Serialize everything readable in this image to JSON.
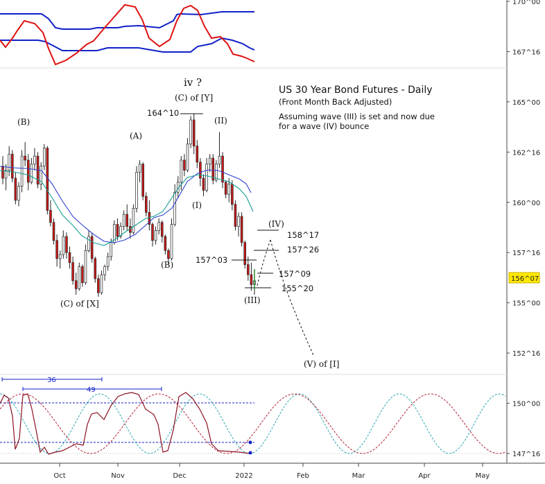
{
  "chart_data": {
    "type": "candlestick",
    "title": "US 30 Year Bond Futures - Daily",
    "subtitle": "(Front Month Back Adjusted)",
    "note_line1": "Assuming wave (III) is set and now due",
    "note_line2": "for a wave (IV) bounce",
    "y_ticks": [
      "170^00",
      "167^16",
      "165^00",
      "162^16",
      "160^00",
      "157^16",
      "155^00",
      "152^16",
      "150^00",
      "147^16"
    ],
    "x_ticks": [
      "Oct",
      "Nov",
      "Dec",
      "2022",
      "Feb",
      "Mar",
      "Apr",
      "May"
    ],
    "last_price": "156^07",
    "wave_labels": {
      "B_left": "(B)",
      "C_of_X": "(C) of [X]",
      "A": "(A)",
      "B": "(B)",
      "iv": "iv ?",
      "C_of_Y": "(C) of [Y]",
      "I": "(I)",
      "II": "(II)",
      "III": "(III)",
      "IV": "(IV)",
      "V_of_I": "(V) of [I]"
    },
    "price_levels": {
      "p164": "164^10",
      "p157_03": "157^03",
      "p158_17": "158^17",
      "p157_26": "157^26",
      "p157_09": "157^09",
      "p155_20": "155^20"
    },
    "cycle_labels": {
      "c36": "36",
      "c49": "49"
    },
    "candles": [
      [
        161.8,
        162.3,
        160.9,
        161.2
      ],
      [
        161.2,
        161.9,
        160.6,
        161.6
      ],
      [
        161.6,
        162.8,
        161.3,
        162.4
      ],
      [
        162.4,
        162.6,
        161.0,
        161.2
      ],
      [
        161.2,
        161.5,
        159.9,
        160.1
      ],
      [
        160.1,
        161.0,
        159.8,
        160.8
      ],
      [
        160.8,
        162.6,
        160.5,
        162.3
      ],
      [
        162.3,
        163.0,
        161.8,
        162.1
      ],
      [
        162.1,
        162.4,
        160.6,
        161.0
      ],
      [
        161.0,
        162.2,
        160.9,
        161.9
      ],
      [
        161.9,
        162.7,
        161.6,
        162.3
      ],
      [
        162.3,
        162.5,
        160.7,
        160.9
      ],
      [
        160.9,
        162.0,
        160.6,
        161.8
      ],
      [
        161.8,
        162.9,
        161.6,
        162.7
      ],
      [
        162.7,
        162.8,
        159.4,
        159.6
      ],
      [
        159.6,
        160.1,
        158.8,
        159.0
      ],
      [
        159.0,
        159.2,
        157.9,
        158.1
      ],
      [
        158.1,
        158.4,
        156.8,
        157.2
      ],
      [
        157.2,
        157.6,
        156.7,
        157.4
      ],
      [
        157.4,
        158.6,
        157.2,
        158.3
      ],
      [
        158.3,
        158.5,
        157.2,
        157.5
      ],
      [
        157.5,
        157.8,
        156.7,
        157.0
      ],
      [
        157.0,
        157.3,
        155.9,
        156.1
      ],
      [
        156.1,
        156.5,
        155.4,
        155.7
      ],
      [
        155.7,
        157.0,
        155.6,
        156.8
      ],
      [
        156.8,
        156.9,
        155.8,
        156.0
      ],
      [
        156.0,
        157.9,
        155.9,
        157.6
      ],
      [
        157.6,
        158.6,
        157.5,
        158.3
      ],
      [
        158.3,
        158.5,
        157.0,
        157.2
      ],
      [
        157.2,
        157.3,
        156.0,
        156.2
      ],
      [
        156.2,
        156.4,
        155.3,
        155.5
      ],
      [
        155.5,
        156.6,
        155.4,
        156.4
      ],
      [
        156.4,
        156.9,
        156.1,
        156.8
      ],
      [
        156.8,
        157.5,
        156.6,
        157.3
      ],
      [
        157.3,
        158.2,
        157.1,
        158.0
      ],
      [
        158.0,
        159.1,
        157.9,
        158.9
      ],
      [
        158.9,
        159.2,
        158.1,
        158.3
      ],
      [
        158.3,
        159.0,
        158.2,
        158.8
      ],
      [
        158.8,
        159.6,
        158.6,
        159.4
      ],
      [
        159.4,
        159.9,
        158.6,
        158.8
      ],
      [
        158.8,
        159.2,
        158.2,
        158.5
      ],
      [
        158.5,
        159.9,
        158.4,
        159.7
      ],
      [
        159.7,
        161.8,
        159.5,
        161.5
      ],
      [
        161.5,
        162.1,
        161.0,
        161.9
      ],
      [
        161.9,
        162.0,
        160.1,
        160.3
      ],
      [
        160.3,
        160.5,
        159.3,
        159.5
      ],
      [
        159.5,
        160.1,
        158.6,
        158.9
      ],
      [
        158.9,
        159.0,
        157.8,
        158.1
      ],
      [
        158.1,
        158.8,
        157.9,
        158.6
      ],
      [
        158.6,
        159.2,
        158.4,
        159.0
      ],
      [
        159.0,
        159.1,
        158.0,
        158.3
      ],
      [
        158.3,
        158.4,
        157.4,
        157.6
      ],
      [
        157.6,
        157.7,
        156.9,
        157.2
      ],
      [
        157.2,
        159.2,
        157.1,
        158.9
      ],
      [
        158.9,
        160.9,
        158.8,
        160.5
      ],
      [
        160.5,
        161.3,
        160.2,
        161.0
      ],
      [
        161.0,
        162.3,
        160.6,
        162.1
      ],
      [
        162.1,
        162.4,
        161.3,
        161.6
      ],
      [
        161.6,
        163.2,
        161.5,
        162.9
      ],
      [
        162.9,
        164.3,
        162.7,
        164.1
      ],
      [
        164.1,
        164.4,
        162.4,
        162.8
      ],
      [
        162.8,
        163.1,
        161.7,
        162.0
      ],
      [
        162.0,
        162.2,
        160.8,
        161.2
      ],
      [
        161.2,
        161.4,
        160.3,
        160.6
      ],
      [
        160.6,
        162.2,
        160.5,
        161.9
      ],
      [
        161.9,
        162.4,
        161.5,
        162.2
      ],
      [
        162.2,
        162.4,
        160.9,
        161.1
      ],
      [
        161.1,
        162.1,
        161.0,
        161.9
      ],
      [
        161.9,
        163.5,
        161.7,
        162.3
      ],
      [
        162.3,
        162.5,
        160.7,
        161.0
      ],
      [
        161.0,
        161.1,
        160.2,
        160.4
      ],
      [
        160.4,
        161.2,
        160.0,
        160.9
      ],
      [
        160.9,
        161.1,
        159.6,
        159.9
      ],
      [
        159.9,
        160.1,
        158.6,
        158.8
      ],
      [
        158.8,
        159.5,
        158.3,
        159.3
      ],
      [
        159.3,
        159.5,
        157.8,
        158.0
      ],
      [
        158.0,
        158.1,
        156.7,
        156.9
      ],
      [
        156.9,
        157.3,
        156.1,
        156.4
      ],
      [
        156.4,
        157.0,
        155.6,
        155.9
      ],
      [
        155.9,
        156.5,
        155.4,
        156.1
      ]
    ]
  }
}
